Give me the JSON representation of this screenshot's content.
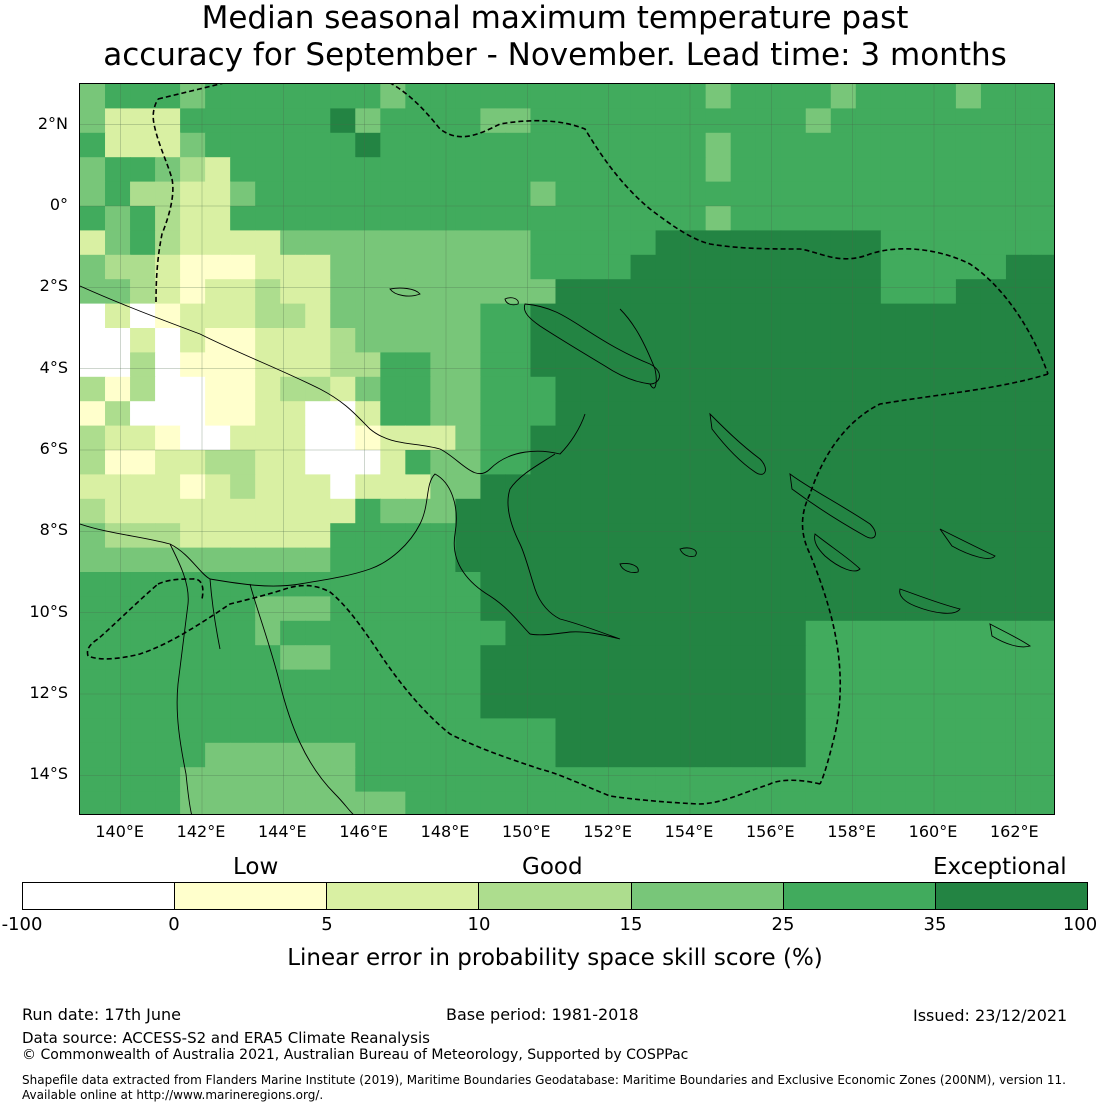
{
  "title": {
    "line1": "Median seasonal maximum temperature past",
    "line2": "accuracy for September - November. Lead time: 3 months"
  },
  "map": {
    "lat_labels": [
      "2°N",
      "0°",
      "2°S",
      "4°S",
      "6°S",
      "8°S",
      "10°S",
      "12°S",
      "14°S"
    ],
    "lon_labels": [
      "140°E",
      "142°E",
      "144°E",
      "146°E",
      "148°E",
      "150°E",
      "152°E",
      "154°E",
      "156°E",
      "158°E",
      "160°E",
      "162°E"
    ],
    "lon_range": [
      139,
      163
    ],
    "lat_range": [
      -15,
      3
    ],
    "colors": {
      "c0": "#ffffff",
      "c1": "#ffffcc",
      "c2": "#d9f0a3",
      "c3": "#addd8e",
      "c4": "#78c679",
      "c5": "#41ab5d",
      "c6": "#238443"
    }
  },
  "legend": {
    "categories": [
      "Low",
      "Good",
      "Exceptional"
    ],
    "ticks": [
      "-100",
      "0",
      "5",
      "10",
      "15",
      "25",
      "35",
      "100"
    ],
    "label": "Linear error in probability space skill score (%)"
  },
  "footer": {
    "run_date": "Run date: 17th June",
    "base_period": "Base period: 1981-2018",
    "issued": "Issued: 23/12/2021",
    "data_source": "Data source: ACCESS-S2 and ERA5 Climate Reanalysis",
    "copyright": "© Commonwealth of Australia 2021, Australian Bureau of Meteorology, Supported by COSPPac",
    "shapefile1": "Shapefile data extracted from Flanders Marine Institute (2019), Maritime Boundaries Geodatabase: Maritime Boundaries and Exclusive Economic Zones (200NM), version 11.",
    "shapefile2": "Available online at http://www.marineregions.org/."
  }
}
